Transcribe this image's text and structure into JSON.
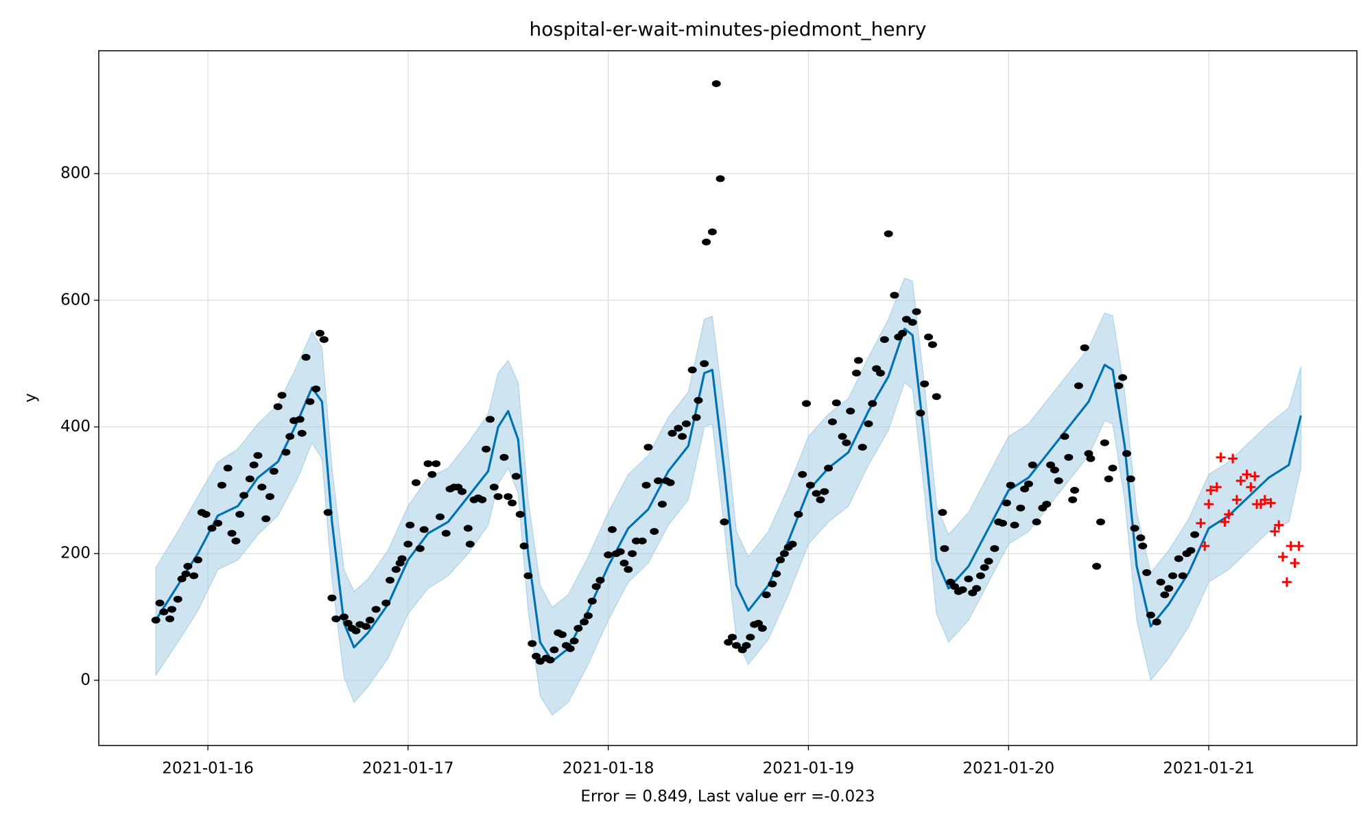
{
  "chart_data": {
    "type": "forecast",
    "title": "hospital-er-wait-minutes-piedmont_henry",
    "xlabel": "Error = 0.849, Last value err =-0.023",
    "ylabel": "y",
    "xlim": [
      -0.545,
      5.74
    ],
    "ylim": [
      -103,
      994
    ],
    "xticks": [
      {
        "value": 0,
        "label": "2021-01-16"
      },
      {
        "value": 1,
        "label": "2021-01-17"
      },
      {
        "value": 2,
        "label": "2021-01-18"
      },
      {
        "value": 3,
        "label": "2021-01-19"
      },
      {
        "value": 4,
        "label": "2021-01-20"
      },
      {
        "value": 5,
        "label": "2021-01-21"
      }
    ],
    "yticks": [
      0,
      200,
      400,
      600,
      800
    ],
    "grid": true,
    "forecast": {
      "color": "#0072b2",
      "band_color": "#a6cde4",
      "x": [
        -0.26,
        -0.15,
        -0.05,
        0.05,
        0.15,
        0.25,
        0.35,
        0.45,
        0.52,
        0.57,
        0.62,
        0.68,
        0.73,
        0.8,
        0.9,
        1.0,
        1.1,
        1.2,
        1.3,
        1.4,
        1.45,
        1.5,
        1.55,
        1.6,
        1.66,
        1.72,
        1.8,
        1.9,
        2.0,
        2.1,
        2.2,
        2.3,
        2.4,
        2.48,
        2.52,
        2.58,
        2.64,
        2.7,
        2.8,
        2.9,
        3.0,
        3.1,
        3.2,
        3.3,
        3.4,
        3.48,
        3.52,
        3.58,
        3.64,
        3.7,
        3.8,
        3.9,
        4.0,
        4.1,
        4.2,
        4.3,
        4.4,
        4.48,
        4.52,
        4.58,
        4.64,
        4.71,
        4.8,
        4.9,
        5.0,
        5.1,
        5.2,
        5.3,
        5.4,
        5.46
      ],
      "values": [
        95,
        150,
        200,
        260,
        275,
        320,
        345,
        410,
        462,
        440,
        250,
        90,
        52,
        75,
        120,
        190,
        232,
        250,
        290,
        330,
        400,
        425,
        380,
        200,
        60,
        30,
        50,
        110,
        180,
        240,
        270,
        330,
        370,
        485,
        490,
        330,
        150,
        110,
        150,
        220,
        300,
        335,
        360,
        425,
        480,
        555,
        545,
        380,
        190,
        145,
        180,
        240,
        300,
        320,
        360,
        400,
        440,
        498,
        490,
        370,
        180,
        85,
        120,
        170,
        240,
        260,
        290,
        320,
        340,
        418
      ],
      "lower": [
        8,
        60,
        110,
        175,
        190,
        230,
        260,
        320,
        375,
        350,
        160,
        5,
        -35,
        -10,
        35,
        105,
        145,
        165,
        200,
        245,
        310,
        335,
        295,
        110,
        -25,
        -55,
        -35,
        25,
        95,
        155,
        185,
        245,
        285,
        400,
        405,
        240,
        65,
        25,
        65,
        135,
        215,
        250,
        275,
        340,
        395,
        470,
        460,
        295,
        105,
        60,
        95,
        155,
        215,
        235,
        275,
        315,
        355,
        410,
        405,
        285,
        95,
        0,
        35,
        85,
        155,
        175,
        205,
        235,
        250,
        335
      ],
      "upper": [
        178,
        235,
        290,
        345,
        365,
        405,
        435,
        500,
        550,
        525,
        335,
        175,
        140,
        160,
        205,
        275,
        320,
        335,
        375,
        420,
        485,
        505,
        470,
        285,
        150,
        115,
        135,
        195,
        265,
        325,
        355,
        415,
        455,
        570,
        575,
        420,
        235,
        195,
        235,
        305,
        385,
        420,
        445,
        510,
        570,
        635,
        630,
        465,
        275,
        230,
        265,
        325,
        385,
        405,
        445,
        485,
        525,
        580,
        575,
        455,
        265,
        170,
        205,
        255,
        325,
        345,
        375,
        405,
        430,
        495
      ]
    },
    "observed": {
      "color": "#000000",
      "x": [
        -0.26,
        -0.24,
        -0.22,
        -0.19,
        -0.18,
        -0.15,
        -0.13,
        -0.11,
        -0.1,
        -0.07,
        -0.05,
        -0.03,
        -0.01,
        0.02,
        0.05,
        0.07,
        0.1,
        0.12,
        0.14,
        0.16,
        0.18,
        0.21,
        0.23,
        0.25,
        0.27,
        0.29,
        0.31,
        0.33,
        0.35,
        0.37,
        0.39,
        0.41,
        0.43,
        0.46,
        0.47,
        0.49,
        0.51,
        0.54,
        0.56,
        0.58,
        0.6,
        0.62,
        0.64,
        0.68,
        0.7,
        0.72,
        0.74,
        0.76,
        0.79,
        0.81,
        0.84,
        0.89,
        0.91,
        0.94,
        0.96,
        0.97,
        1.0,
        1.01,
        1.04,
        1.06,
        1.08,
        1.1,
        1.12,
        1.14,
        1.16,
        1.19,
        1.21,
        1.23,
        1.25,
        1.27,
        1.3,
        1.31,
        1.33,
        1.35,
        1.37,
        1.39,
        1.41,
        1.43,
        1.45,
        1.48,
        1.5,
        1.52,
        1.54,
        1.56,
        1.58,
        1.6,
        1.62,
        1.64,
        1.66,
        1.69,
        1.71,
        1.73,
        1.75,
        1.77,
        1.79,
        1.81,
        1.83,
        1.85,
        1.88,
        1.9,
        1.92,
        1.94,
        1.96,
        2.0,
        2.02,
        2.04,
        2.06,
        2.08,
        2.1,
        2.12,
        2.14,
        2.17,
        2.19,
        2.2,
        2.23,
        2.25,
        2.27,
        2.29,
        2.31,
        2.32,
        2.35,
        2.37,
        2.39,
        2.42,
        2.44,
        2.45,
        2.48,
        2.49,
        2.52,
        2.54,
        2.56,
        2.58,
        2.6,
        2.62,
        2.64,
        2.67,
        2.69,
        2.71,
        2.73,
        2.75,
        2.77,
        2.79,
        2.82,
        2.84,
        2.86,
        2.88,
        2.9,
        2.92,
        2.95,
        2.97,
        2.99,
        3.01,
        3.04,
        3.06,
        3.08,
        3.1,
        3.12,
        3.14,
        3.17,
        3.19,
        3.21,
        3.24,
        3.25,
        3.27,
        3.3,
        3.32,
        3.34,
        3.36,
        3.38,
        3.4,
        3.43,
        3.45,
        3.47,
        3.49,
        3.52,
        3.54,
        3.56,
        3.58,
        3.6,
        3.62,
        3.64,
        3.67,
        3.68,
        3.71,
        3.73,
        3.75,
        3.77,
        3.8,
        3.82,
        3.84,
        3.86,
        3.88,
        3.9,
        3.93,
        3.95,
        3.97,
        3.99,
        4.01,
        4.03,
        4.06,
        4.08,
        4.1,
        4.12,
        4.14,
        4.17,
        4.19,
        4.21,
        4.23,
        4.25,
        4.28,
        4.3,
        4.32,
        4.33,
        4.35,
        4.38,
        4.4,
        4.41,
        4.44,
        4.46,
        4.48,
        4.5,
        4.52,
        4.55,
        4.57,
        4.59,
        4.61,
        4.63,
        4.66,
        4.67,
        4.69,
        4.71,
        4.74,
        4.76,
        4.78,
        4.8,
        4.82,
        4.85,
        4.87,
        4.89,
        4.91,
        4.93
      ],
      "values": [
        95,
        122,
        108,
        97,
        112,
        128,
        160,
        168,
        180,
        165,
        190,
        265,
        262,
        240,
        248,
        308,
        335,
        232,
        220,
        262,
        292,
        318,
        340,
        355,
        305,
        255,
        290,
        330,
        432,
        450,
        360,
        385,
        410,
        412,
        390,
        510,
        440,
        460,
        548,
        538,
        265,
        130,
        97,
        100,
        90,
        82,
        78,
        88,
        85,
        95,
        112,
        122,
        158,
        175,
        185,
        192,
        215,
        245,
        312,
        208,
        238,
        342,
        325,
        342,
        258,
        232,
        302,
        305,
        305,
        298,
        240,
        215,
        285,
        288,
        285,
        365,
        412,
        305,
        290,
        352,
        290,
        280,
        322,
        262,
        212,
        165,
        58,
        38,
        30,
        35,
        32,
        48,
        75,
        72,
        55,
        50,
        62,
        82,
        92,
        102,
        125,
        148,
        158,
        198,
        238,
        200,
        203,
        185,
        175,
        200,
        220,
        220,
        308,
        368,
        235,
        315,
        278,
        315,
        312,
        390,
        398,
        385,
        405,
        490,
        415,
        442,
        500,
        692,
        708,
        942,
        792,
        250,
        60,
        68,
        55,
        48,
        55,
        68,
        88,
        90,
        82,
        135,
        152,
        168,
        190,
        200,
        210,
        215,
        262,
        325,
        437,
        308,
        295,
        285,
        298,
        335,
        408,
        438,
        385,
        375,
        425,
        485,
        505,
        368,
        405,
        437,
        492,
        485,
        538,
        705,
        608,
        542,
        548,
        570,
        565,
        582,
        422,
        468,
        542,
        530,
        448,
        265,
        208,
        155,
        148,
        140,
        143,
        160,
        138,
        145,
        165,
        178,
        188,
        208,
        250,
        248,
        280,
        308,
        245,
        272,
        302,
        310,
        340,
        250,
        272,
        278,
        340,
        332,
        315,
        385,
        352,
        285,
        300,
        465,
        525,
        358,
        350,
        180,
        250,
        375,
        318,
        335,
        465,
        478,
        358,
        318,
        240,
        225,
        212,
        170,
        103,
        92,
        155,
        135,
        145,
        165,
        192,
        165,
        200,
        205,
        230
      ]
    },
    "test": {
      "color": "#ff0000",
      "x": [
        4.96,
        4.98,
        5.0,
        5.01,
        5.04,
        5.06,
        5.08,
        5.1,
        5.12,
        5.14,
        5.16,
        5.19,
        5.21,
        5.23,
        5.24,
        5.26,
        5.28,
        5.31,
        5.33,
        5.35,
        5.37,
        5.39,
        5.41,
        5.43,
        5.45
      ],
      "values": [
        248,
        212,
        278,
        300,
        305,
        352,
        250,
        262,
        350,
        285,
        315,
        325,
        305,
        322,
        278,
        278,
        285,
        280,
        235,
        245,
        195,
        155,
        212,
        185,
        212
      ]
    }
  }
}
